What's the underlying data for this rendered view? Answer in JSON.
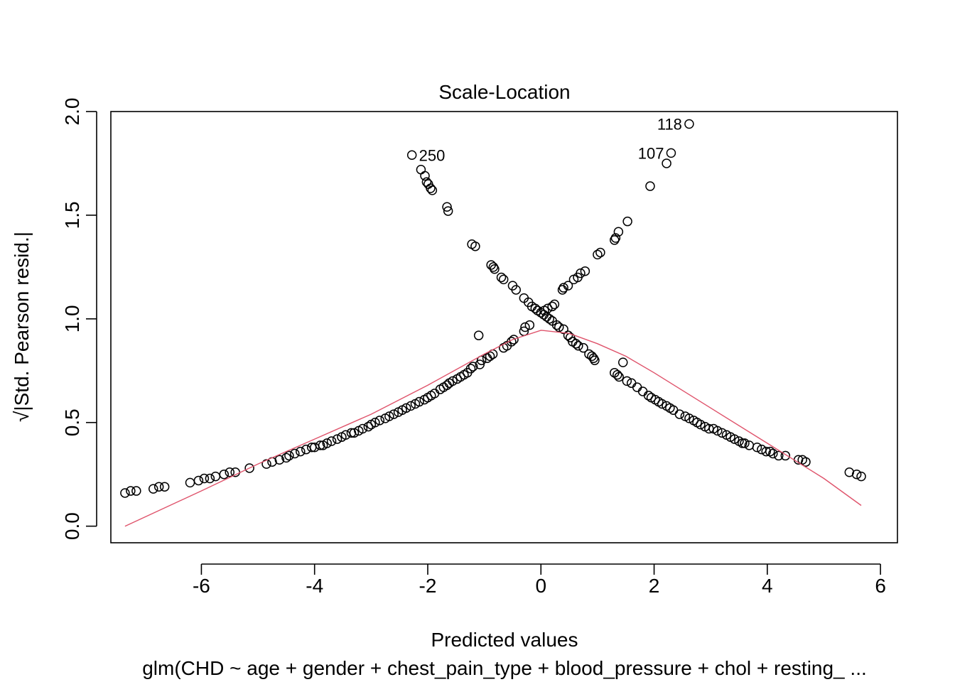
{
  "chart_data": {
    "type": "scatter",
    "title": "Scale-Location",
    "xlabel": "Predicted values",
    "ylabel": "√|Std. Pearson resid.|",
    "subtitle": "glm(CHD ~ age + gender + chest_pain_type + blood_pressure + chol + resting_ ...",
    "xlim": [
      -7.6,
      6.3
    ],
    "ylim": [
      -0.08,
      2.0
    ],
    "x_ticks": [
      -6,
      -4,
      -2,
      0,
      2,
      4,
      6
    ],
    "y_ticks": [
      0.0,
      0.5,
      1.0,
      1.5,
      2.0
    ],
    "x_tick_labels": [
      "-6",
      "-4",
      "-2",
      "0",
      "2",
      "4",
      "6"
    ],
    "y_tick_labels": [
      "0.0",
      "0.5",
      "1.0",
      "1.5",
      "2.0"
    ],
    "grid": false,
    "colors": {
      "points": "#000000",
      "smooth": "#DF536B"
    },
    "points": [
      [
        -2.28,
        1.79
      ],
      [
        -2.12,
        1.72
      ],
      [
        -2.05,
        1.69
      ],
      [
        -2.02,
        1.66
      ],
      [
        -1.99,
        1.65
      ],
      [
        -1.95,
        1.63
      ],
      [
        -1.92,
        1.62
      ],
      [
        -1.66,
        1.54
      ],
      [
        -1.64,
        1.52
      ],
      [
        -1.22,
        1.36
      ],
      [
        -1.16,
        1.35
      ],
      [
        -0.88,
        1.26
      ],
      [
        -0.84,
        1.25
      ],
      [
        -0.82,
        1.24
      ],
      [
        -0.7,
        1.2
      ],
      [
        -0.66,
        1.19
      ],
      [
        -0.5,
        1.16
      ],
      [
        -0.44,
        1.14
      ],
      [
        -0.3,
        1.1
      ],
      [
        -0.22,
        1.08
      ],
      [
        -0.16,
        1.06
      ],
      [
        -0.1,
        1.05
      ],
      [
        -0.06,
        1.04
      ],
      [
        0.0,
        1.03
      ],
      [
        0.05,
        1.02
      ],
      [
        0.1,
        1.01
      ],
      [
        0.15,
        1.0
      ],
      [
        0.2,
        0.99
      ],
      [
        0.28,
        0.97
      ],
      [
        0.32,
        0.96
      ],
      [
        0.4,
        0.95
      ],
      [
        0.48,
        0.92
      ],
      [
        0.52,
        0.91
      ],
      [
        0.56,
        0.89
      ],
      [
        0.62,
        0.88
      ],
      [
        0.66,
        0.87
      ],
      [
        0.75,
        0.86
      ],
      [
        0.85,
        0.83
      ],
      [
        0.9,
        0.82
      ],
      [
        0.93,
        0.81
      ],
      [
        0.95,
        0.8
      ],
      [
        1.3,
        0.74
      ],
      [
        1.35,
        0.73
      ],
      [
        1.38,
        0.72
      ],
      [
        1.45,
        0.79
      ],
      [
        1.52,
        0.7
      ],
      [
        1.6,
        0.69
      ],
      [
        1.7,
        0.67
      ],
      [
        1.8,
        0.65
      ],
      [
        1.9,
        0.63
      ],
      [
        1.95,
        0.62
      ],
      [
        2.02,
        0.61
      ],
      [
        2.08,
        0.6
      ],
      [
        2.14,
        0.59
      ],
      [
        2.22,
        0.58
      ],
      [
        2.28,
        0.57
      ],
      [
        2.34,
        0.56
      ],
      [
        2.45,
        0.54
      ],
      [
        2.55,
        0.53
      ],
      [
        2.62,
        0.52
      ],
      [
        2.7,
        0.51
      ],
      [
        2.76,
        0.5
      ],
      [
        2.82,
        0.49
      ],
      [
        2.9,
        0.48
      ],
      [
        2.97,
        0.47
      ],
      [
        3.05,
        0.47
      ],
      [
        3.12,
        0.46
      ],
      [
        3.2,
        0.45
      ],
      [
        3.28,
        0.44
      ],
      [
        3.35,
        0.43
      ],
      [
        3.42,
        0.42
      ],
      [
        3.5,
        0.41
      ],
      [
        3.56,
        0.4
      ],
      [
        3.6,
        0.4
      ],
      [
        3.68,
        0.39
      ],
      [
        3.82,
        0.38
      ],
      [
        3.9,
        0.37
      ],
      [
        3.98,
        0.36
      ],
      [
        4.05,
        0.36
      ],
      [
        4.1,
        0.35
      ],
      [
        4.2,
        0.34
      ],
      [
        4.32,
        0.34
      ],
      [
        4.55,
        0.32
      ],
      [
        4.62,
        0.32
      ],
      [
        4.68,
        0.31
      ],
      [
        5.45,
        0.26
      ],
      [
        5.58,
        0.25
      ],
      [
        5.66,
        0.24
      ],
      [
        2.62,
        1.94
      ],
      [
        2.3,
        1.8
      ],
      [
        2.22,
        1.75
      ],
      [
        1.93,
        1.64
      ],
      [
        1.53,
        1.47
      ],
      [
        1.37,
        1.42
      ],
      [
        1.32,
        1.39
      ],
      [
        1.3,
        1.38
      ],
      [
        1.05,
        1.32
      ],
      [
        1.0,
        1.31
      ],
      [
        0.78,
        1.23
      ],
      [
        0.7,
        1.22
      ],
      [
        0.65,
        1.2
      ],
      [
        0.58,
        1.19
      ],
      [
        0.48,
        1.16
      ],
      [
        0.4,
        1.15
      ],
      [
        0.38,
        1.14
      ],
      [
        0.24,
        1.07
      ],
      [
        0.2,
        1.06
      ],
      [
        0.12,
        1.05
      ],
      [
        0.06,
        1.04
      ],
      [
        -0.2,
        0.97
      ],
      [
        -0.28,
        0.96
      ],
      [
        -0.3,
        0.94
      ],
      [
        -0.48,
        0.9
      ],
      [
        -0.52,
        0.89
      ],
      [
        -0.6,
        0.87
      ],
      [
        -0.66,
        0.86
      ],
      [
        -0.85,
        0.83
      ],
      [
        -0.9,
        0.82
      ],
      [
        -0.95,
        0.81
      ],
      [
        -1.05,
        0.8
      ],
      [
        -1.08,
        0.78
      ],
      [
        -1.1,
        0.92
      ],
      [
        -1.2,
        0.77
      ],
      [
        -1.24,
        0.76
      ],
      [
        -1.3,
        0.74
      ],
      [
        -1.36,
        0.73
      ],
      [
        -1.42,
        0.72
      ],
      [
        -1.48,
        0.71
      ],
      [
        -1.56,
        0.7
      ],
      [
        -1.62,
        0.69
      ],
      [
        -1.66,
        0.68
      ],
      [
        -1.72,
        0.67
      ],
      [
        -1.78,
        0.66
      ],
      [
        -1.88,
        0.64
      ],
      [
        -1.94,
        0.63
      ],
      [
        -2.0,
        0.62
      ],
      [
        -2.06,
        0.61
      ],
      [
        -2.15,
        0.6
      ],
      [
        -2.22,
        0.59
      ],
      [
        -2.3,
        0.58
      ],
      [
        -2.38,
        0.57
      ],
      [
        -2.45,
        0.56
      ],
      [
        -2.52,
        0.55
      ],
      [
        -2.6,
        0.54
      ],
      [
        -2.68,
        0.53
      ],
      [
        -2.75,
        0.52
      ],
      [
        -2.85,
        0.51
      ],
      [
        -2.93,
        0.5
      ],
      [
        -3.0,
        0.49
      ],
      [
        -3.05,
        0.48
      ],
      [
        -3.15,
        0.47
      ],
      [
        -3.22,
        0.46
      ],
      [
        -3.3,
        0.45
      ],
      [
        -3.35,
        0.45
      ],
      [
        -3.45,
        0.44
      ],
      [
        -3.52,
        0.43
      ],
      [
        -3.6,
        0.42
      ],
      [
        -3.7,
        0.41
      ],
      [
        -3.78,
        0.4
      ],
      [
        -3.85,
        0.39
      ],
      [
        -3.9,
        0.39
      ],
      [
        -4.0,
        0.38
      ],
      [
        -4.05,
        0.38
      ],
      [
        -4.15,
        0.37
      ],
      [
        -4.25,
        0.36
      ],
      [
        -4.35,
        0.35
      ],
      [
        -4.45,
        0.34
      ],
      [
        -4.5,
        0.33
      ],
      [
        -4.62,
        0.32
      ],
      [
        -4.75,
        0.31
      ],
      [
        -4.85,
        0.3
      ],
      [
        -5.15,
        0.28
      ],
      [
        -5.4,
        0.26
      ],
      [
        -5.5,
        0.26
      ],
      [
        -5.6,
        0.25
      ],
      [
        -5.75,
        0.24
      ],
      [
        -5.85,
        0.23
      ],
      [
        -5.95,
        0.23
      ],
      [
        -6.05,
        0.22
      ],
      [
        -6.2,
        0.21
      ],
      [
        -6.65,
        0.19
      ],
      [
        -6.75,
        0.19
      ],
      [
        -6.85,
        0.18
      ],
      [
        -7.15,
        0.17
      ],
      [
        -7.25,
        0.17
      ],
      [
        -7.35,
        0.16
      ]
    ],
    "point_labels": [
      {
        "x": 2.62,
        "y": 1.94,
        "text": "118",
        "side": "left"
      },
      {
        "x": 2.3,
        "y": 1.8,
        "text": "107",
        "side": "left"
      },
      {
        "x": -2.28,
        "y": 1.79,
        "text": "250",
        "side": "right"
      }
    ],
    "smooth_line": {
      "x": [
        -7.35,
        -6.0,
        -5.0,
        -4.0,
        -3.0,
        -2.0,
        -1.0,
        -0.5,
        0.0,
        0.5,
        1.0,
        1.5,
        2.0,
        3.0,
        4.0,
        5.0,
        5.66
      ],
      "y": [
        0.0,
        0.17,
        0.3,
        0.42,
        0.54,
        0.68,
        0.83,
        0.9,
        0.945,
        0.93,
        0.88,
        0.82,
        0.74,
        0.57,
        0.4,
        0.23,
        0.1
      ]
    }
  }
}
